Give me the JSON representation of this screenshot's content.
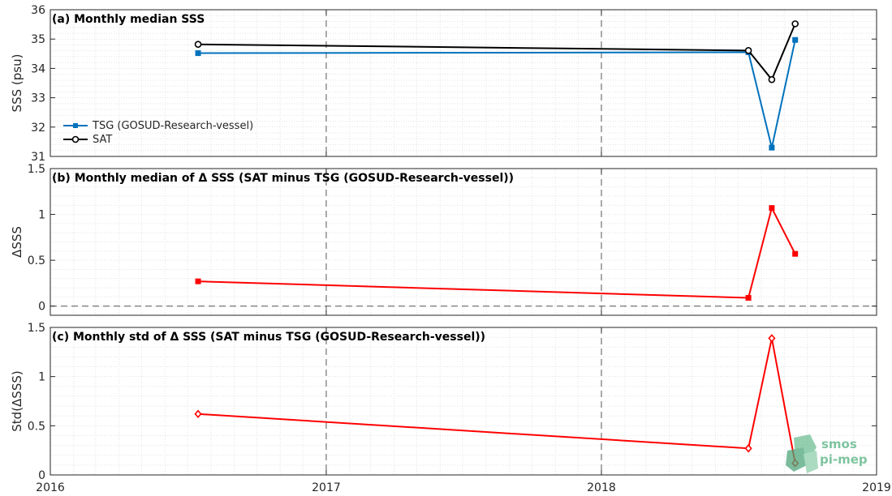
{
  "chart_data": [
    {
      "id": "a",
      "type": "line",
      "title": "(a) Monthly median SSS",
      "ylabel": "SSS (psu)",
      "xlim": [
        "2016-01-01",
        "2019-01-01"
      ],
      "ylim": [
        31,
        36
      ],
      "yticks": [
        31,
        32,
        33,
        34,
        35,
        36
      ],
      "legend_position": "center-left",
      "series": [
        {
          "name": "TSG (GOSUD-Research-vessel)",
          "color": "#0072bd",
          "marker": "square",
          "x": [
            "2016-07-15",
            "2018-07-15",
            "2018-08-15",
            "2018-09-15"
          ],
          "y": [
            34.52,
            34.55,
            31.3,
            34.97
          ]
        },
        {
          "name": "SAT",
          "color": "#000000",
          "marker": "circle",
          "x": [
            "2016-07-15",
            "2018-07-15",
            "2018-08-15",
            "2018-09-15"
          ],
          "y": [
            34.82,
            34.61,
            33.62,
            35.52
          ]
        }
      ]
    },
    {
      "id": "b",
      "type": "line",
      "title": "(b) Monthly median of Δ SSS (SAT minus TSG (GOSUD-Research-vessel))",
      "ylabel": "ΔSSS",
      "xlim": [
        "2016-01-01",
        "2019-01-01"
      ],
      "ylim": [
        -0.1,
        1.5
      ],
      "yticks": [
        0,
        0.5,
        1,
        1.5
      ],
      "zero_line": true,
      "series": [
        {
          "color": "#ff0000",
          "marker": "square",
          "x": [
            "2016-07-15",
            "2018-07-15",
            "2018-08-15",
            "2018-09-15"
          ],
          "y": [
            0.27,
            0.09,
            1.07,
            0.57
          ]
        }
      ]
    },
    {
      "id": "c",
      "type": "line",
      "title": "(c) Monthly std of Δ SSS (SAT minus TSG (GOSUD-Research-vessel))",
      "ylabel": "Std(ΔSSS)",
      "xlim": [
        "2016-01-01",
        "2019-01-01"
      ],
      "ylim": [
        0,
        1.5
      ],
      "yticks": [
        0,
        0.5,
        1,
        1.5
      ],
      "series": [
        {
          "color": "#ff0000",
          "marker": "diamond",
          "x": [
            "2016-07-15",
            "2018-07-15",
            "2018-08-15",
            "2018-09-15"
          ],
          "y": [
            0.62,
            0.27,
            1.39,
            0.12
          ]
        }
      ]
    }
  ],
  "x_axis": {
    "ticks": [
      "2016-01-01",
      "2017-01-01",
      "2018-01-01",
      "2019-01-01"
    ],
    "labels": [
      "2016",
      "2017",
      "2018",
      "2019"
    ]
  },
  "year_lines": [
    "2017-01-01",
    "2018-01-01"
  ],
  "grid": true,
  "logo": {
    "line1": "smos",
    "line2": "pi-mep",
    "color": "#7fc4a0"
  }
}
